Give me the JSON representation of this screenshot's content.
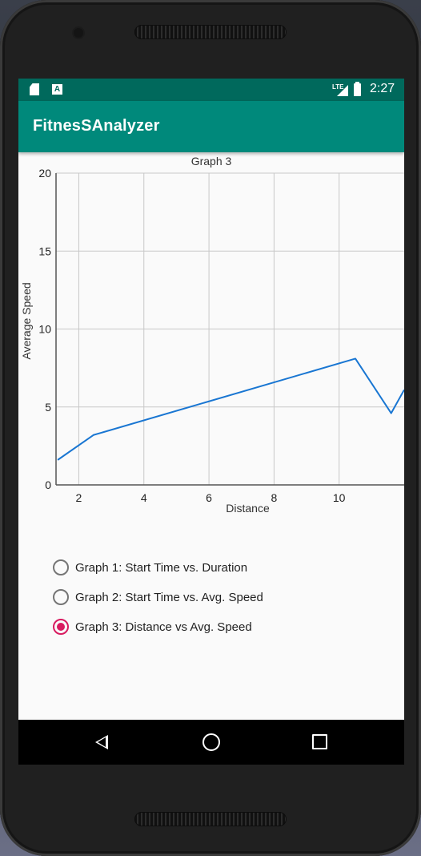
{
  "status_bar": {
    "network": "LTE",
    "time": "2:27"
  },
  "app_bar": {
    "title": "FitnesSAnalyzer"
  },
  "chart_data": {
    "type": "line",
    "title": "Graph 3",
    "xlabel": "Distance",
    "ylabel": "Average Speed",
    "xlim": [
      1.3,
      12.0
    ],
    "ylim": [
      0,
      20
    ],
    "xticks": [
      2,
      4,
      6,
      8,
      10
    ],
    "yticks": [
      0,
      5,
      10,
      15,
      20
    ],
    "grid": true,
    "line_color": "#1976d2",
    "series": [
      {
        "x": [
          1.35,
          2.45,
          10.5,
          11.6,
          12.0
        ],
        "y": [
          1.6,
          3.2,
          8.1,
          4.6,
          6.1
        ]
      }
    ]
  },
  "radio_group": {
    "options": [
      {
        "label": "Graph 1: Start Time vs. Duration",
        "checked": false
      },
      {
        "label": "Graph 2: Start Time vs. Avg. Speed",
        "checked": false
      },
      {
        "label": "Graph 3: Distance vs Avg. Speed",
        "checked": true
      }
    ],
    "accent_color": "#d81b60"
  },
  "nav_bar": {
    "back_icon": "back-triangle-icon",
    "home_icon": "home-circle-icon",
    "recents_icon": "recents-square-icon"
  }
}
